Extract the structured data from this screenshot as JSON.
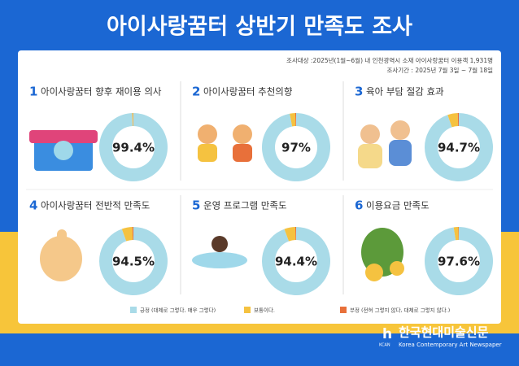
{
  "header": {
    "title": "아이사랑꿈터 상반기 만족도 조사",
    "notes": [
      "조사대상 :2025년(1월~6월) 내 인천광역시 소재  아이사랑꿈터 이용객 1,931명",
      "조사기간 : 2025년 7월 3일 ~ 7월 18일"
    ]
  },
  "legend": {
    "categories": [
      "긍정 (대체로 그렇다, 매우 그렇다)",
      "보통이다.",
      "부정 (전혀 그렇지 않다, 대체로 그렇지 않다.)"
    ],
    "colors": [
      "#a9dbe8",
      "#f5c240",
      "#e8703a"
    ]
  },
  "chart_data": [
    {
      "type": "pie",
      "number": "1",
      "title": "아이사랑꿈터 향후 재이용 의사",
      "values": [
        99.4,
        0.5,
        0.1
      ],
      "center_label": "99.4%"
    },
    {
      "type": "pie",
      "number": "2",
      "title": "아이사랑꿈터 추천의향",
      "values": [
        97,
        2.6,
        0.4
      ],
      "center_label": "97%"
    },
    {
      "type": "pie",
      "number": "3",
      "title": "육아 부담 절감 효과",
      "values": [
        94.7,
        4.8,
        0.5
      ],
      "center_label": "94.7%"
    },
    {
      "type": "pie",
      "number": "4",
      "title": "아이사랑꿈터 전반적 만족도",
      "values": [
        94.5,
        5.0,
        0.5
      ],
      "center_label": "94.5%"
    },
    {
      "type": "pie",
      "number": "5",
      "title": "운영 프로그램 만족도",
      "values": [
        94.4,
        5.2,
        0.4
      ],
      "center_label": "94.4%"
    },
    {
      "type": "pie",
      "number": "6",
      "title": "이용요금 만족도",
      "values": [
        97.6,
        2.2,
        0.2
      ],
      "center_label": "97.6%"
    }
  ],
  "footer": {
    "brand": "한국현대미술신문",
    "brand_en": "Korea Contemporary Art Newspaper",
    "logo": "KCAN"
  }
}
